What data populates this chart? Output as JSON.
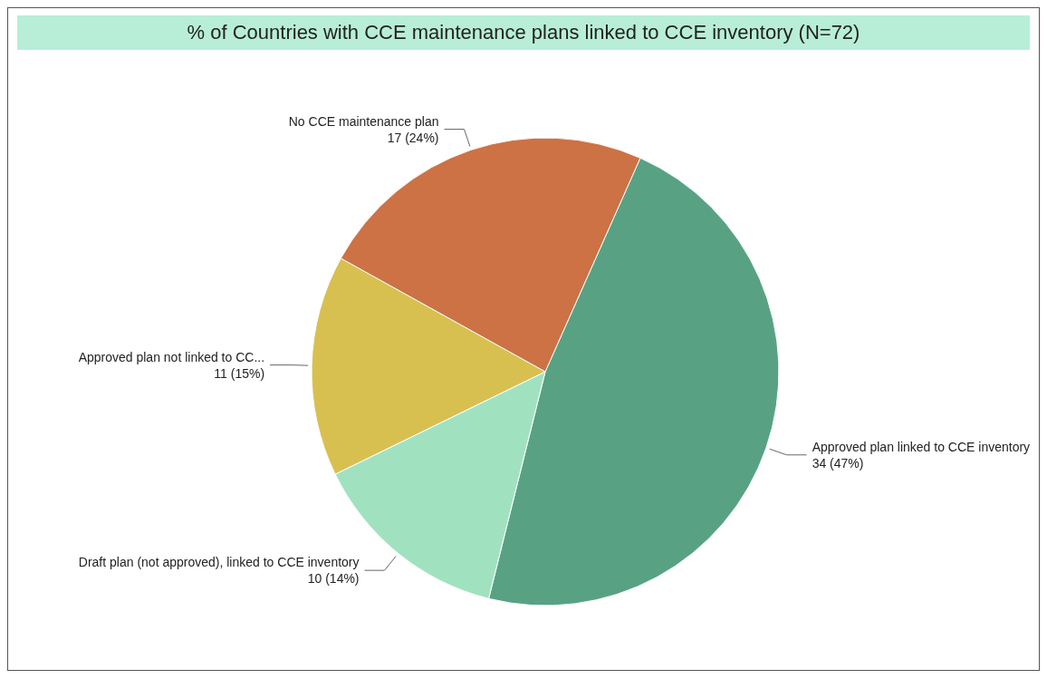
{
  "chart_data": {
    "type": "pie",
    "title": "% of Countries with CCE maintenance plans linked to CCE inventory (N=72)",
    "categories": [
      "Approved plan linked to CCE inventory",
      "Draft plan (not approved), linked to CCE inventory",
      "Approved plan not linked to CC...",
      "No CCE maintenance plan"
    ],
    "values": [
      34,
      10,
      11,
      17
    ],
    "colors": [
      "#58a283",
      "#a0e2c0",
      "#d8c050",
      "#cc7245"
    ],
    "value_labels": [
      "34 (47%)",
      "10 (14%)",
      "11 (15%)",
      "17 (24%)"
    ]
  }
}
